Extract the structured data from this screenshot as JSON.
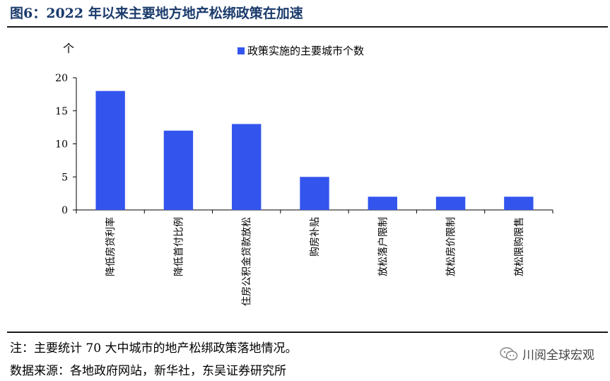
{
  "header": {
    "title": "图6：2022 年以来主要地方地产松绑政策在加速"
  },
  "footer": {
    "note": "注：主要统计 70 大中城市的地产松绑政策落地情况。",
    "source": "数据来源：各地政府网站，新华社，东吴证券研究所",
    "watermark": "川阅全球宏观"
  },
  "chart_data": {
    "type": "bar",
    "title": "",
    "unit": "个",
    "xlabel": "",
    "ylabel": "",
    "categories": [
      "降低房贷利率",
      "降低首付比例",
      "住房公积金贷款放松",
      "购房补贴",
      "放松落户限制",
      "放松房价限制",
      "放松限购限售"
    ],
    "series": [
      {
        "name": "政策实施的主要城市个数",
        "values": [
          18,
          12,
          13,
          5,
          2,
          2,
          2
        ]
      }
    ],
    "ylim": [
      0,
      20
    ],
    "yticks": [
      0,
      5,
      10,
      15,
      20
    ],
    "grid": false,
    "legend_position": "top",
    "colors": {
      "bar": "#3355ee"
    }
  }
}
